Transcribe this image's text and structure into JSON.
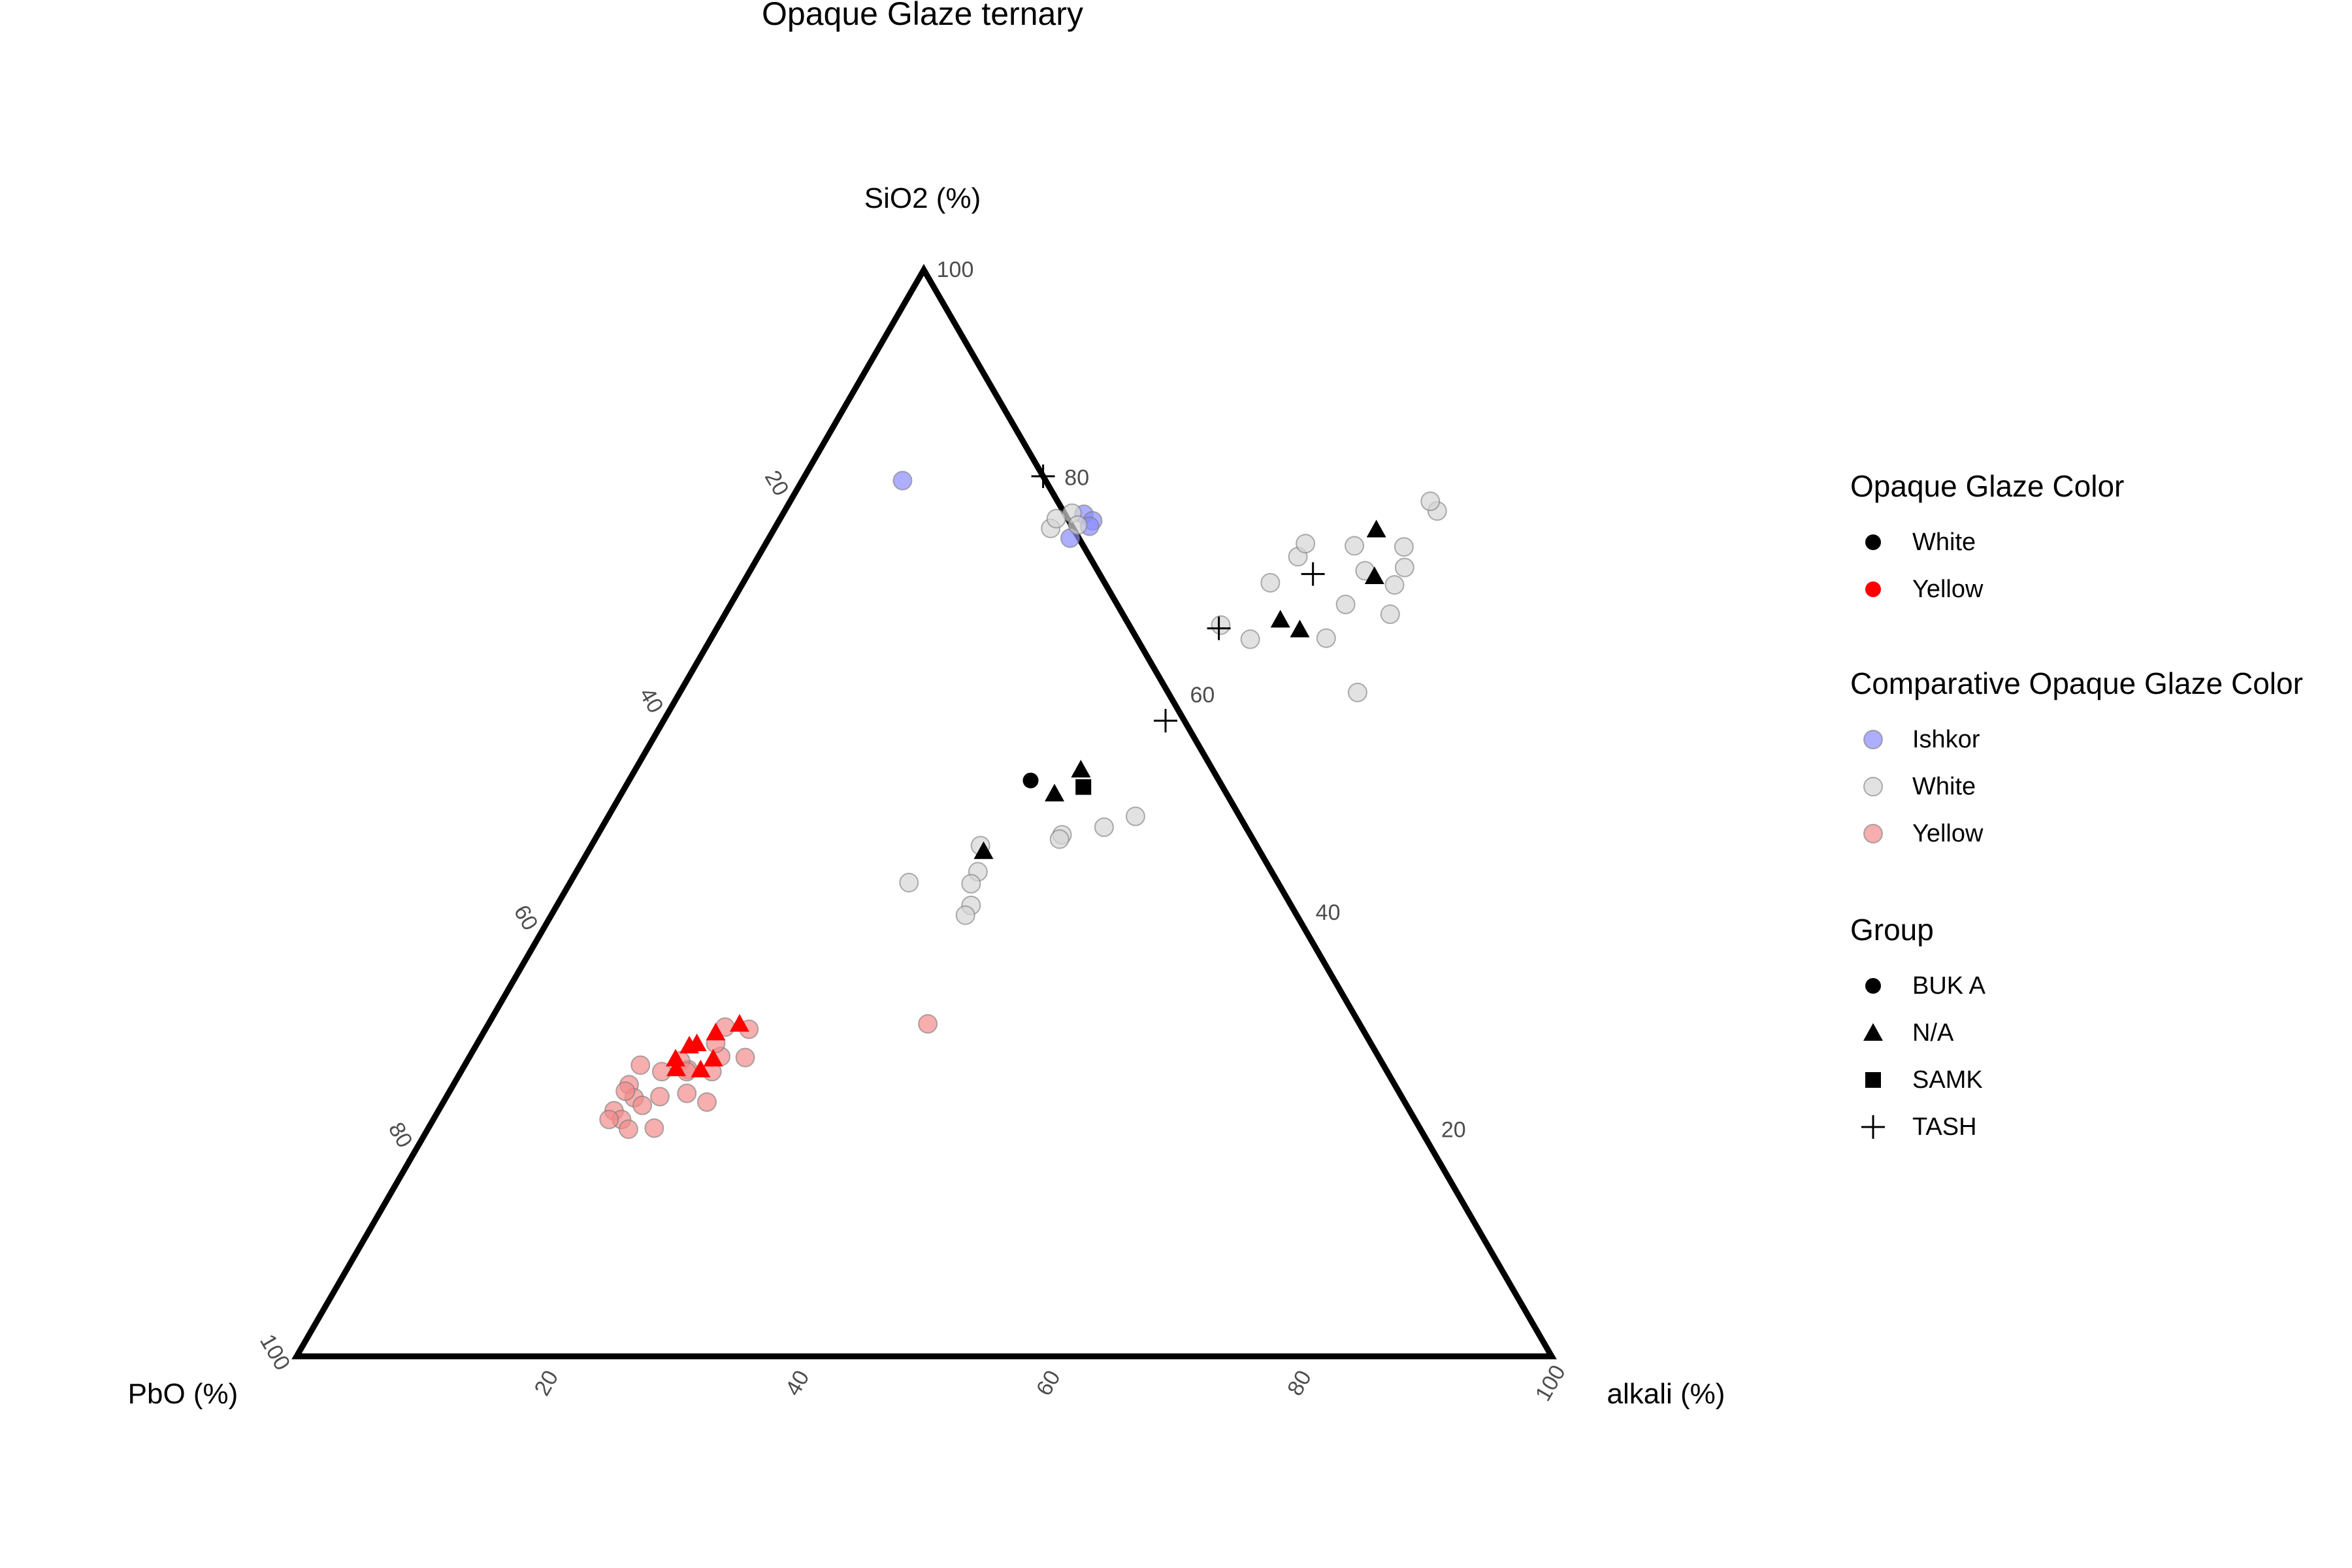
{
  "chart_data": {
    "type": "scatter",
    "subtype": "ternary",
    "title": "Opaque Glaze ternary",
    "axes": {
      "top": "SiO2 (%)",
      "left": "PbO (%)",
      "right": "alkali (%)"
    },
    "ticks": {
      "left": [
        "100",
        "80",
        "60",
        "40",
        "20"
      ],
      "right": [
        "20",
        "40",
        "60",
        "80"
      ],
      "top": "100",
      "bottom": [
        "20",
        "40",
        "60",
        "80",
        "100"
      ]
    },
    "grid": false,
    "legend_position": "right",
    "colors": {
      "white": "#000000",
      "yellow": "#ff0000",
      "cmp_ishkor": "#8c8cff",
      "cmp_white": "#d6d6d6",
      "cmp_yellow": "#f28c8c"
    },
    "legend": [
      {
        "title": "Opaque Glaze Color",
        "items": [
          {
            "label": "White",
            "color": "#000000",
            "shape": "circle"
          },
          {
            "label": "Yellow",
            "color": "#ff0000",
            "shape": "circle"
          }
        ]
      },
      {
        "title": "Comparative Opaque Glaze Color",
        "items": [
          {
            "label": "Ishkor",
            "color": "#8c8cff",
            "shape": "circle"
          },
          {
            "label": "White",
            "color": "#d6d6d6",
            "shape": "circle"
          },
          {
            "label": "Yellow",
            "color": "#f28c8c",
            "shape": "circle"
          }
        ]
      },
      {
        "title": "Group",
        "items": [
          {
            "label": "BUK A",
            "color": "#000000",
            "shape": "circle"
          },
          {
            "label": "N/A",
            "color": "#000000",
            "shape": "triangle"
          },
          {
            "label": "SAMK",
            "color": "#000000",
            "shape": "square"
          },
          {
            "label": "TASH",
            "color": "#000000",
            "shape": "plus"
          }
        ]
      }
    ],
    "comparative": {
      "Ishkor": [
        [
          8,
          80.6
        ],
        [
          24,
          77.5
        ],
        [
          25,
          76.9
        ],
        [
          25,
          76.4
        ],
        [
          24,
          75.3
        ]
      ],
      "White": [
        [
          31,
          47
        ],
        [
          33,
          41.5
        ],
        [
          33,
          40.6
        ],
        [
          32,
          44.6
        ],
        [
          27,
          43.6
        ],
        [
          32,
          43.5
        ],
        [
          37,
          48
        ],
        [
          40,
          48.7
        ],
        [
          37,
          47.6
        ],
        [
          42,
          49.7
        ],
        [
          54,
          61.1
        ],
        [
          49,
          69.2
        ],
        [
          43,
          66
        ],
        [
          40,
          67.3
        ],
        [
          52,
          71
        ],
        [
          42,
          71.2
        ],
        [
          49,
          72.3
        ],
        [
          43,
          73.6
        ],
        [
          47,
          74.6
        ],
        [
          51,
          74.5
        ],
        [
          43,
          74.8
        ],
        [
          52,
          77.8
        ],
        [
          51,
          78.7
        ],
        [
          52,
          72.6
        ],
        [
          53,
          68.3
        ],
        [
          49,
          66.1
        ],
        [
          23,
          77.6
        ],
        [
          24,
          76.5
        ],
        [
          22,
          76.2
        ],
        [
          22,
          77.1
        ]
      ],
      "Yellow": [
        [
          14,
          25
        ],
        [
          15,
          23.8
        ],
        [
          14,
          24.4
        ],
        [
          14,
          22.6
        ],
        [
          16,
          23.1
        ],
        [
          18,
          21
        ],
        [
          19,
          24.2
        ],
        [
          16,
          26.2
        ],
        [
          18,
          26.4
        ],
        [
          17,
          27.2
        ],
        [
          20,
          27.6
        ],
        [
          19,
          28.8
        ],
        [
          19,
          30.3
        ],
        [
          21,
          30.1
        ],
        [
          15,
          21.8
        ],
        [
          16,
          20.9
        ],
        [
          17,
          23.9
        ],
        [
          18,
          26.2
        ],
        [
          14,
          26.8
        ],
        [
          14,
          21.8
        ],
        [
          20,
          26.2
        ],
        [
          22,
          27.5
        ],
        [
          21,
          23.4
        ],
        [
          35,
          30.6
        ]
      ]
    },
    "samples": {
      "BUK A": [
        {
          "alkali": 32,
          "sio2": 53,
          "color": "White"
        }
      ],
      "SAMK": [
        {
          "alkali": 36.5,
          "sio2": 52.4,
          "color": "White"
        }
      ],
      "TASH": [
        {
          "alkali": 19,
          "sio2": 81,
          "color": "White"
        },
        {
          "alkali": 45,
          "sio2": 72,
          "color": "White"
        },
        {
          "alkali": 40,
          "sio2": 67,
          "color": "White"
        },
        {
          "alkali": 40,
          "sio2": 58.5,
          "color": "White"
        }
      ],
      "N/A": [
        {
          "alkali": 35.5,
          "sio2": 54.0,
          "color": "White"
        },
        {
          "alkali": 34.5,
          "sio2": 51.8,
          "color": "White"
        },
        {
          "alkali": 31.5,
          "sio2": 46.5,
          "color": "White"
        },
        {
          "alkali": 48,
          "sio2": 76.1,
          "color": "White"
        },
        {
          "alkali": 50,
          "sio2": 71.8,
          "color": "White"
        },
        {
          "alkali": 44.5,
          "sio2": 67.8,
          "color": "White"
        },
        {
          "alkali": 46.5,
          "sio2": 66.9,
          "color": "White"
        },
        {
          "alkali": 17,
          "sio2": 28.6,
          "color": "Yellow"
        },
        {
          "alkali": 18.5,
          "sio2": 29.8,
          "color": "Yellow"
        },
        {
          "alkali": 17.5,
          "sio2": 28.8,
          "color": "Yellow"
        },
        {
          "alkali": 17,
          "sio2": 26.5,
          "color": "Yellow"
        },
        {
          "alkali": 19.5,
          "sio2": 27.4,
          "color": "Yellow"
        },
        {
          "alkali": 20,
          "sio2": 30.6,
          "color": "Yellow"
        },
        {
          "alkali": 19,
          "sio2": 26.4,
          "color": "Yellow"
        },
        {
          "alkali": 16.5,
          "sio2": 27.4,
          "color": "Yellow"
        }
      ]
    }
  }
}
